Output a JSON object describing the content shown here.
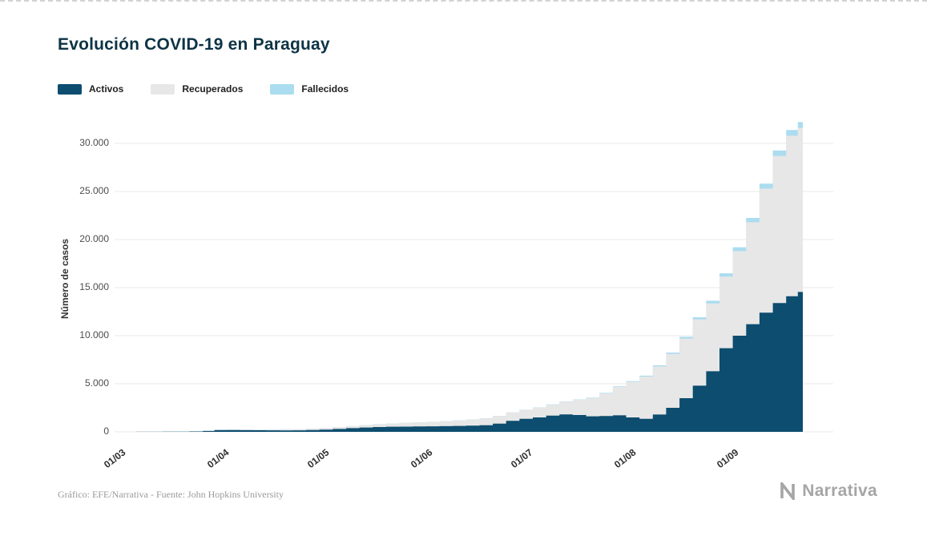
{
  "footer": {
    "caption": "Gráfico: EFE/Narrativa - Fuente: John Hopkins University",
    "brand": "Narrativa"
  },
  "chart_data": {
    "type": "area",
    "stacked": true,
    "title": "Evolución COVID-19 en Paraguay",
    "ylabel": "Número de casos",
    "xlabel": "",
    "grid": true,
    "legend_position": "top-left",
    "legend": [
      "Activos",
      "Recuperados",
      "Fallecidos"
    ],
    "colors": {
      "activos": "#0d4d6f",
      "recuperados": "#e7e7e7",
      "fallecidos": "#abdcf0",
      "gridline": "#e9e9e9",
      "title_text": "#0d3345",
      "brand_gray": "#a6a6a6"
    },
    "ylim": [
      0,
      32500
    ],
    "y_tick_values": [
      0,
      5000,
      10000,
      15000,
      20000,
      25000,
      30000
    ],
    "y_tick_labels": [
      "0",
      "5.000",
      "10.000",
      "15.000",
      "20.000",
      "25.000",
      "30.000"
    ],
    "x_ticks": [
      {
        "label": "01/03",
        "day": 0
      },
      {
        "label": "01/04",
        "day": 31
      },
      {
        "label": "01/05",
        "day": 61
      },
      {
        "label": "01/06",
        "day": 92
      },
      {
        "label": "01/07",
        "day": 122
      },
      {
        "label": "01/08",
        "day": 153
      },
      {
        "label": "01/09",
        "day": 184
      }
    ],
    "dates": [
      "01/03",
      "05/03",
      "09/03",
      "13/03",
      "17/03",
      "21/03",
      "25/03",
      "29/03",
      "01/04",
      "05/04",
      "09/04",
      "13/04",
      "17/04",
      "21/04",
      "25/04",
      "29/04",
      "03/05",
      "07/05",
      "11/05",
      "15/05",
      "19/05",
      "23/05",
      "27/05",
      "31/05",
      "04/06",
      "08/06",
      "12/06",
      "16/06",
      "20/06",
      "24/06",
      "28/06",
      "02/07",
      "06/07",
      "10/07",
      "14/07",
      "18/07",
      "22/07",
      "26/07",
      "30/07",
      "03/08",
      "07/08",
      "11/08",
      "15/08",
      "19/08",
      "23/08",
      "27/08",
      "31/08",
      "04/09",
      "08/09",
      "12/09",
      "16/09",
      "20/09",
      "23/09"
    ],
    "days": [
      0,
      4,
      8,
      12,
      16,
      20,
      24,
      28,
      31,
      35,
      39,
      43,
      47,
      51,
      55,
      59,
      63,
      67,
      71,
      75,
      79,
      83,
      87,
      91,
      95,
      99,
      103,
      107,
      111,
      115,
      119,
      123,
      127,
      131,
      135,
      139,
      143,
      147,
      151,
      155,
      159,
      163,
      167,
      171,
      175,
      179,
      183,
      187,
      191,
      195,
      199,
      203,
      206
    ],
    "series": [
      {
        "name": "Activos",
        "color": "#0d4d6f",
        "values": [
          1,
          2,
          5,
          9,
          15,
          25,
          45,
          90,
          190,
          185,
          175,
          165,
          155,
          150,
          160,
          185,
          230,
          300,
          380,
          450,
          500,
          530,
          545,
          555,
          575,
          595,
          615,
          645,
          690,
          850,
          1150,
          1350,
          1500,
          1680,
          1820,
          1750,
          1620,
          1650,
          1720,
          1500,
          1350,
          1800,
          2500,
          3500,
          4800,
          6300,
          8700,
          10000,
          11200,
          12400,
          13400,
          14100,
          14550
        ]
      },
      {
        "name": "Recuperados",
        "color": "#e7e7e7",
        "values": [
          0,
          0,
          0,
          0,
          1,
          2,
          3,
          6,
          12,
          30,
          50,
          70,
          90,
          110,
          125,
          140,
          155,
          175,
          200,
          240,
          285,
          335,
          385,
          420,
          455,
          500,
          555,
          625,
          710,
          790,
          860,
          930,
          1020,
          1140,
          1320,
          1580,
          1900,
          2350,
          2950,
          3700,
          4400,
          5000,
          5600,
          6200,
          6900,
          7050,
          7450,
          8800,
          10600,
          12900,
          15300,
          16700,
          17050
        ]
      },
      {
        "name": "Fallecidos",
        "color": "#abdcf0",
        "values": [
          0,
          0,
          0,
          1,
          1,
          2,
          3,
          5,
          8,
          9,
          10,
          10,
          10,
          10,
          10,
          10,
          10,
          11,
          11,
          11,
          11,
          11,
          11,
          11,
          12,
          12,
          13,
          13,
          14,
          15,
          17,
          20,
          23,
          26,
          30,
          35,
          40,
          46,
          55,
          70,
          90,
          115,
          145,
          180,
          220,
          280,
          340,
          400,
          450,
          510,
          560,
          600,
          620
        ]
      }
    ]
  }
}
